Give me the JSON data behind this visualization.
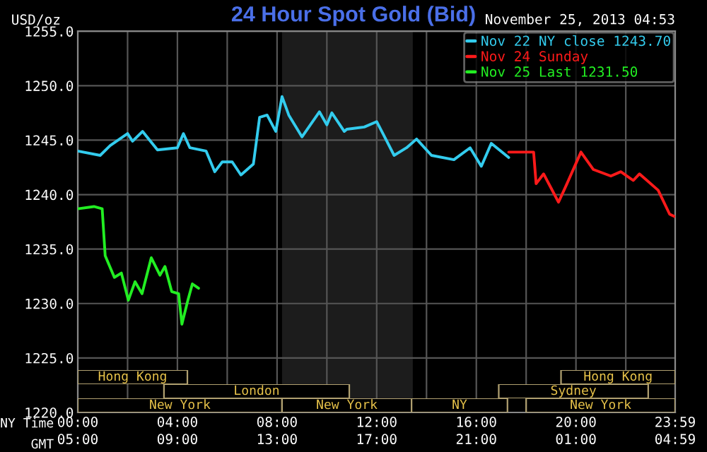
{
  "chart_data": [
    {
      "type": "line",
      "title": "24 Hour Spot Gold (Bid)",
      "ylabel": "USD/oz",
      "xlabel": "NY Time",
      "x2label": "GMT",
      "annotations": [
        "November 25, 2013 04:53"
      ],
      "xlim": [
        0,
        23.983
      ],
      "xticks": [
        {
          "value": 0,
          "label": "00:00"
        },
        {
          "value": 2,
          "label": null
        },
        {
          "value": 4,
          "label": "04:00"
        },
        {
          "value": 6,
          "label": null
        },
        {
          "value": 8,
          "label": "08:00"
        },
        {
          "value": 10,
          "label": null
        },
        {
          "value": 12,
          "label": "12:00"
        },
        {
          "value": 14,
          "label": null
        },
        {
          "value": 16,
          "label": "16:00"
        },
        {
          "value": 18,
          "label": null
        },
        {
          "value": 20,
          "label": "20:00"
        },
        {
          "value": 22,
          "label": null
        },
        {
          "value": 23.983,
          "label": "23:59"
        }
      ],
      "x2lim": [
        "2013-11-24T05:00",
        "2013-11-25T04:59"
      ],
      "x2ticks": [
        {
          "value": "2013-11-24T05:00",
          "label": "05:00"
        },
        {
          "value": "2013-11-24T09:00",
          "label": "09:00"
        },
        {
          "value": "2013-11-24T13:00",
          "label": "13:00"
        },
        {
          "value": "2013-11-24T17:00",
          "label": "17:00"
        },
        {
          "value": "2013-11-24T21:00",
          "label": "21:00"
        },
        {
          "value": "2013-11-25T01:00",
          "label": "01:00"
        },
        {
          "value": "2013-11-25T04:59",
          "label": "04:59"
        }
      ],
      "ylim": [
        1220,
        1255
      ],
      "yticks": [
        {
          "value": 1220,
          "label": "1220.0"
        },
        {
          "value": 1225,
          "label": "1225.0"
        },
        {
          "value": 1230,
          "label": "1230.0"
        },
        {
          "value": 1235,
          "label": "1235.0"
        },
        {
          "value": 1240,
          "label": "1240.0"
        },
        {
          "value": 1245,
          "label": "1245.0"
        },
        {
          "value": 1250,
          "label": "1250.0"
        },
        {
          "value": 1255,
          "label": "1255.0"
        }
      ],
      "grid": true,
      "legend": "top right",
      "line_style": "solid",
      "marker": "none",
      "bands": [
        {
          "axis": "x",
          "from": 8.2,
          "to": 13.45,
          "color": "#1c1c1c"
        }
      ],
      "series": [
        {
          "name": "Nov 22 NY close 1243.70",
          "color": "#33ccee",
          "x": [
            0,
            0.9,
            1.3,
            2.0,
            2.2,
            2.6,
            3.2,
            4.0,
            4.24,
            4.5,
            5.15,
            5.5,
            5.8,
            6.2,
            6.55,
            7.05,
            7.3,
            7.6,
            7.95,
            8.2,
            8.47,
            9.0,
            9.7,
            10.0,
            10.2,
            10.7,
            10.8,
            11.5,
            12.0,
            12.25,
            12.7,
            13.2,
            13.6,
            14.2,
            15.1,
            15.75,
            16.2,
            16.6,
            17.3
          ],
          "values": [
            1244.0,
            1243.6,
            1244.5,
            1245.6,
            1244.9,
            1245.8,
            1244.1,
            1244.3,
            1245.6,
            1244.3,
            1244.0,
            1242.1,
            1243.0,
            1243.0,
            1241.8,
            1242.8,
            1247.1,
            1247.3,
            1245.8,
            1249.0,
            1247.3,
            1245.3,
            1247.6,
            1246.4,
            1247.5,
            1245.8,
            1246.0,
            1246.2,
            1246.7,
            1245.6,
            1243.6,
            1244.3,
            1245.1,
            1243.6,
            1243.2,
            1244.3,
            1242.6,
            1244.7,
            1243.4
          ]
        },
        {
          "name": "Nov 24 Sunday",
          "color": "#ff1a1a",
          "x": [
            17.3,
            18.3,
            18.4,
            18.7,
            19.0,
            19.3,
            19.6,
            20.2,
            20.7,
            21.4,
            21.8,
            22.3,
            22.55,
            23.3,
            23.76,
            23.94
          ],
          "values": [
            1243.9,
            1243.9,
            1241.0,
            1241.9,
            1240.6,
            1239.3,
            1240.8,
            1243.9,
            1242.3,
            1241.7,
            1242.1,
            1241.3,
            1241.9,
            1240.4,
            1238.2,
            1238.0
          ]
        },
        {
          "name": "Nov 25 Last 1231.50",
          "color": "#22ee22",
          "x": [
            0,
            0.65,
            0.98,
            1.1,
            1.47,
            1.75,
            2.03,
            2.3,
            2.58,
            2.95,
            3.3,
            3.5,
            3.77,
            4.05,
            4.18,
            4.42,
            4.6,
            4.85
          ],
          "values": [
            1238.7,
            1238.9,
            1238.7,
            1234.4,
            1232.4,
            1232.8,
            1230.3,
            1232.0,
            1230.9,
            1234.2,
            1232.6,
            1233.4,
            1231.1,
            1230.9,
            1228.1,
            1230.3,
            1231.8,
            1231.4
          ]
        }
      ]
    },
    {
      "type": "bar",
      "orientation": "horizontal",
      "categories": [
        null
      ],
      "xlim": [
        0,
        23.983
      ],
      "tick_labels": false,
      "series": [
        {
          "color": "#000000",
          "base": [
            0
          ],
          "values": [
            4.4
          ],
          "value_labels": [
            "Hong Kong"
          ]
        },
        {
          "color": "#000000",
          "base": [
            19.4
          ],
          "values": [
            4.58
          ],
          "value_labels": [
            "Hong Kong"
          ]
        }
      ]
    },
    {
      "type": "bar",
      "orientation": "horizontal",
      "categories": [
        null
      ],
      "xlim": [
        0,
        23.983
      ],
      "tick_labels": false,
      "series": [
        {
          "color": "#000000",
          "base": [
            3.46
          ],
          "values": [
            7.44
          ],
          "value_labels": [
            "London"
          ]
        },
        {
          "color": "#000000",
          "base": [
            16.9
          ],
          "values": [
            6.0
          ],
          "value_labels": [
            "Sydney"
          ]
        }
      ]
    },
    {
      "type": "bar",
      "orientation": "horizontal",
      "categories": [
        null
      ],
      "xlim": [
        0,
        23.983
      ],
      "tick_labels": false,
      "series": [
        {
          "color": "#000000",
          "base": [
            0
          ],
          "values": [
            8.2
          ],
          "value_labels": [
            "New York"
          ]
        },
        {
          "color": "#000000",
          "base": [
            8.2
          ],
          "values": [
            5.2
          ],
          "value_labels": [
            "New York"
          ]
        },
        {
          "color": "#000000",
          "base": [
            13.4
          ],
          "values": [
            3.85
          ],
          "value_labels": [
            "NY"
          ]
        },
        {
          "color": "#000000",
          "base": [
            18.0
          ],
          "values": [
            5.98
          ],
          "value_labels": [
            "New York"
          ]
        }
      ]
    }
  ]
}
